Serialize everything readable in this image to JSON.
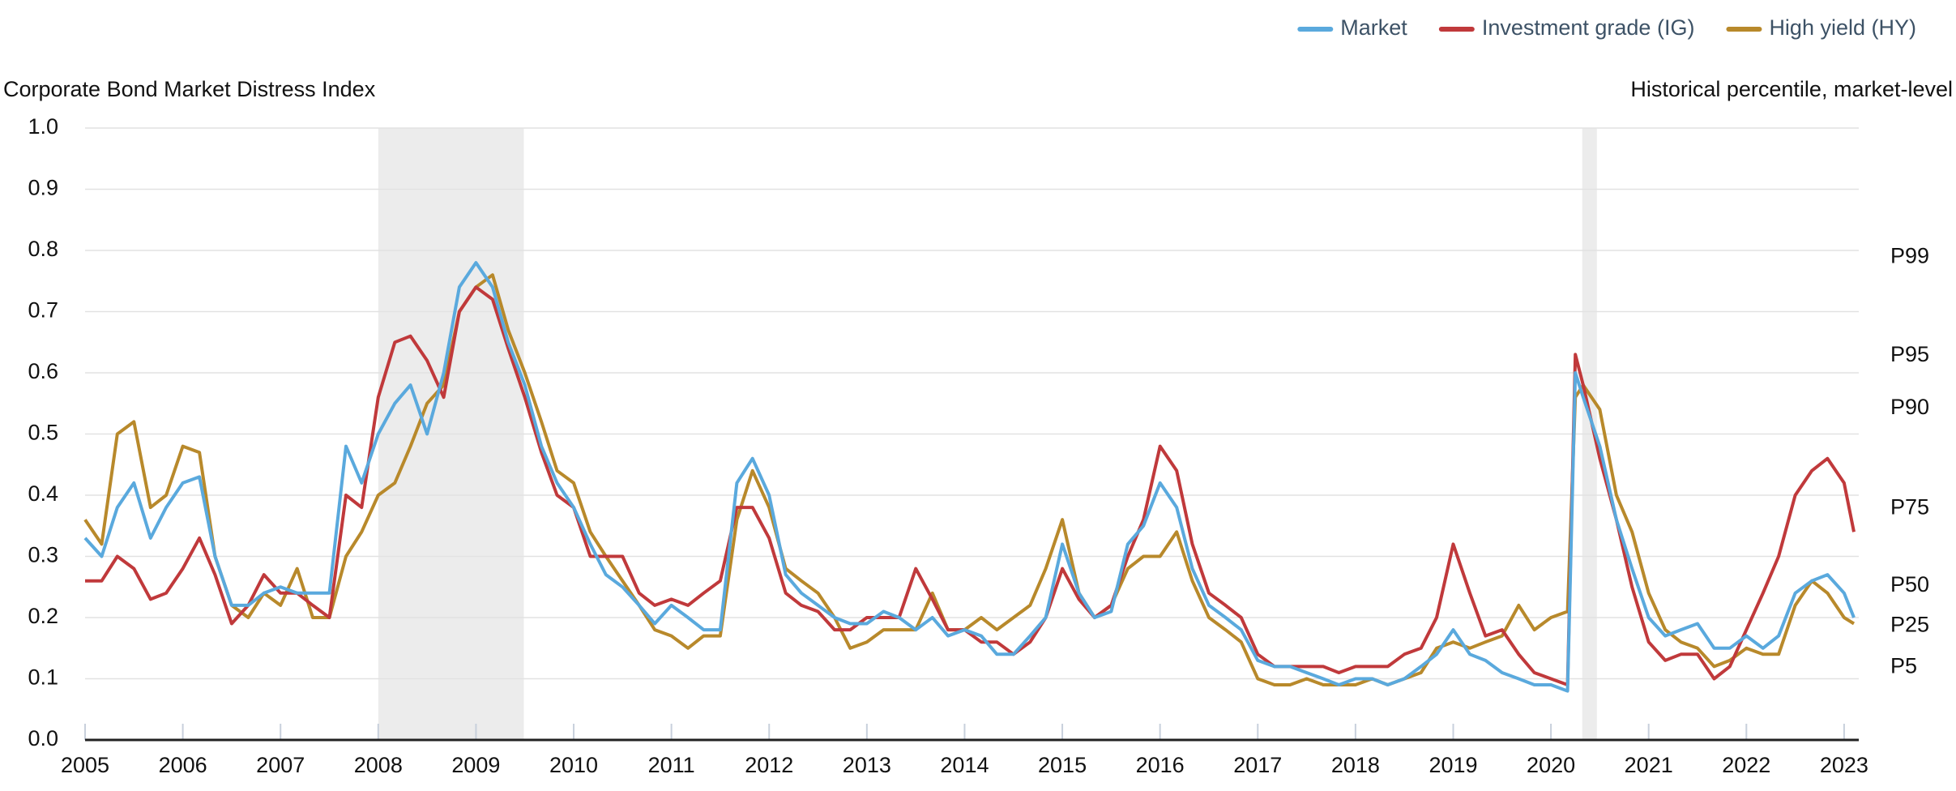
{
  "chart_data": {
    "type": "line",
    "title": "Corporate Bond Market Distress Index",
    "y2_title": "Historical percentile, market-level",
    "x": [
      2005,
      2005.17,
      2005.33,
      2005.5,
      2005.67,
      2005.83,
      2006,
      2006.17,
      2006.33,
      2006.5,
      2006.67,
      2006.83,
      2007,
      2007.17,
      2007.33,
      2007.5,
      2007.67,
      2007.83,
      2008,
      2008.17,
      2008.33,
      2008.5,
      2008.67,
      2008.83,
      2009,
      2009.17,
      2009.33,
      2009.5,
      2009.67,
      2009.83,
      2010,
      2010.17,
      2010.33,
      2010.5,
      2010.67,
      2010.83,
      2011,
      2011.17,
      2011.33,
      2011.5,
      2011.67,
      2011.83,
      2012,
      2012.17,
      2012.33,
      2012.5,
      2012.67,
      2012.83,
      2013,
      2013.17,
      2013.33,
      2013.5,
      2013.67,
      2013.83,
      2014,
      2014.17,
      2014.33,
      2014.5,
      2014.67,
      2014.83,
      2015,
      2015.17,
      2015.33,
      2015.5,
      2015.67,
      2015.83,
      2016,
      2016.17,
      2016.33,
      2016.5,
      2016.67,
      2016.83,
      2017,
      2017.17,
      2017.33,
      2017.5,
      2017.67,
      2017.83,
      2018,
      2018.17,
      2018.33,
      2018.5,
      2018.67,
      2018.83,
      2019,
      2019.17,
      2019.33,
      2019.5,
      2019.67,
      2019.83,
      2020,
      2020.17,
      2020.25,
      2020.33,
      2020.5,
      2020.67,
      2020.83,
      2021,
      2021.17,
      2021.33,
      2021.5,
      2021.67,
      2021.83,
      2022,
      2022.17,
      2022.33,
      2022.5,
      2022.67,
      2022.83,
      2023,
      2023.1
    ],
    "series": [
      {
        "name": "Market",
        "color": "#5aa9dd",
        "values": [
          0.33,
          0.3,
          0.38,
          0.42,
          0.33,
          0.38,
          0.42,
          0.43,
          0.3,
          0.22,
          0.22,
          0.24,
          0.25,
          0.24,
          0.24,
          0.24,
          0.48,
          0.42,
          0.5,
          0.55,
          0.58,
          0.5,
          0.6,
          0.74,
          0.78,
          0.74,
          0.65,
          0.58,
          0.48,
          0.42,
          0.38,
          0.32,
          0.27,
          0.25,
          0.22,
          0.19,
          0.22,
          0.2,
          0.18,
          0.18,
          0.42,
          0.46,
          0.4,
          0.27,
          0.24,
          0.22,
          0.2,
          0.19,
          0.19,
          0.21,
          0.2,
          0.18,
          0.2,
          0.17,
          0.18,
          0.17,
          0.14,
          0.14,
          0.17,
          0.2,
          0.32,
          0.24,
          0.2,
          0.21,
          0.32,
          0.35,
          0.42,
          0.38,
          0.28,
          0.22,
          0.2,
          0.18,
          0.13,
          0.12,
          0.12,
          0.11,
          0.1,
          0.09,
          0.1,
          0.1,
          0.09,
          0.1,
          0.12,
          0.14,
          0.18,
          0.14,
          0.13,
          0.11,
          0.1,
          0.09,
          0.09,
          0.08,
          0.6,
          0.56,
          0.48,
          0.36,
          0.28,
          0.2,
          0.17,
          0.18,
          0.19,
          0.15,
          0.15,
          0.17,
          0.15,
          0.17,
          0.24,
          0.26,
          0.27,
          0.24,
          0.2
        ]
      },
      {
        "name": "Investment grade (IG)",
        "color": "#c0393b",
        "values": [
          0.26,
          0.26,
          0.3,
          0.28,
          0.23,
          0.24,
          0.28,
          0.33,
          0.27,
          0.19,
          0.22,
          0.27,
          0.24,
          0.24,
          0.22,
          0.2,
          0.4,
          0.38,
          0.56,
          0.65,
          0.66,
          0.62,
          0.56,
          0.7,
          0.74,
          0.72,
          0.64,
          0.56,
          0.47,
          0.4,
          0.38,
          0.3,
          0.3,
          0.3,
          0.24,
          0.22,
          0.23,
          0.22,
          0.24,
          0.26,
          0.38,
          0.38,
          0.33,
          0.24,
          0.22,
          0.21,
          0.18,
          0.18,
          0.2,
          0.2,
          0.2,
          0.28,
          0.23,
          0.18,
          0.18,
          0.16,
          0.16,
          0.14,
          0.16,
          0.2,
          0.28,
          0.23,
          0.2,
          0.22,
          0.3,
          0.36,
          0.48,
          0.44,
          0.32,
          0.24,
          0.22,
          0.2,
          0.14,
          0.12,
          0.12,
          0.12,
          0.12,
          0.11,
          0.12,
          0.12,
          0.12,
          0.14,
          0.15,
          0.2,
          0.32,
          0.24,
          0.17,
          0.18,
          0.14,
          0.11,
          0.1,
          0.09,
          0.63,
          0.58,
          0.46,
          0.36,
          0.25,
          0.16,
          0.13,
          0.14,
          0.14,
          0.1,
          0.12,
          0.18,
          0.24,
          0.3,
          0.4,
          0.44,
          0.46,
          0.42,
          0.34
        ]
      },
      {
        "name": "High yield (HY)",
        "color": "#b8892b",
        "values": [
          0.36,
          0.32,
          0.5,
          0.52,
          0.38,
          0.4,
          0.48,
          0.47,
          0.3,
          0.22,
          0.2,
          0.24,
          0.22,
          0.28,
          0.2,
          0.2,
          0.3,
          0.34,
          0.4,
          0.42,
          0.48,
          0.55,
          0.58,
          0.7,
          0.74,
          0.76,
          0.67,
          0.6,
          0.52,
          0.44,
          0.42,
          0.34,
          0.3,
          0.26,
          0.22,
          0.18,
          0.17,
          0.15,
          0.17,
          0.17,
          0.36,
          0.44,
          0.38,
          0.28,
          0.26,
          0.24,
          0.2,
          0.15,
          0.16,
          0.18,
          0.18,
          0.18,
          0.24,
          0.18,
          0.18,
          0.2,
          0.18,
          0.2,
          0.22,
          0.28,
          0.36,
          0.24,
          0.2,
          0.22,
          0.28,
          0.3,
          0.3,
          0.34,
          0.26,
          0.2,
          0.18,
          0.16,
          0.1,
          0.09,
          0.09,
          0.1,
          0.09,
          0.09,
          0.09,
          0.1,
          0.09,
          0.1,
          0.11,
          0.15,
          0.16,
          0.15,
          0.16,
          0.17,
          0.22,
          0.18,
          0.2,
          0.21,
          0.56,
          0.58,
          0.54,
          0.4,
          0.34,
          0.24,
          0.18,
          0.16,
          0.15,
          0.12,
          0.13,
          0.15,
          0.14,
          0.14,
          0.22,
          0.26,
          0.24,
          0.2,
          0.19
        ]
      }
    ],
    "shaded_periods": [
      [
        2008.0,
        2009.49
      ],
      [
        2020.32,
        2020.47
      ]
    ],
    "xlim": [
      2005,
      2023.15
    ],
    "xticks": [
      2005,
      2006,
      2007,
      2008,
      2009,
      2010,
      2011,
      2012,
      2013,
      2014,
      2015,
      2016,
      2017,
      2018,
      2019,
      2020,
      2021,
      2022,
      2023
    ],
    "ylim": [
      0,
      1
    ],
    "yticks": [
      {
        "value": 0,
        "label": "0.0"
      },
      0.1,
      0.2,
      0.3,
      0.4,
      0.5,
      0.6,
      0.7,
      0.8,
      0.9,
      {
        "value": 1,
        "label": "1.0"
      }
    ],
    "y2lim": [
      0,
      1
    ],
    "y2ticks": [
      {
        "value": 0.789,
        "label": "P99"
      },
      {
        "value": 0.628,
        "label": "P95"
      },
      {
        "value": 0.542,
        "label": "P90"
      },
      {
        "value": 0.378,
        "label": "P75"
      },
      {
        "value": 0.252,
        "label": "P50"
      },
      {
        "value": 0.186,
        "label": "P25"
      },
      {
        "value": 0.119,
        "label": "P5"
      }
    ],
    "grid": true,
    "legend": "top-right"
  }
}
